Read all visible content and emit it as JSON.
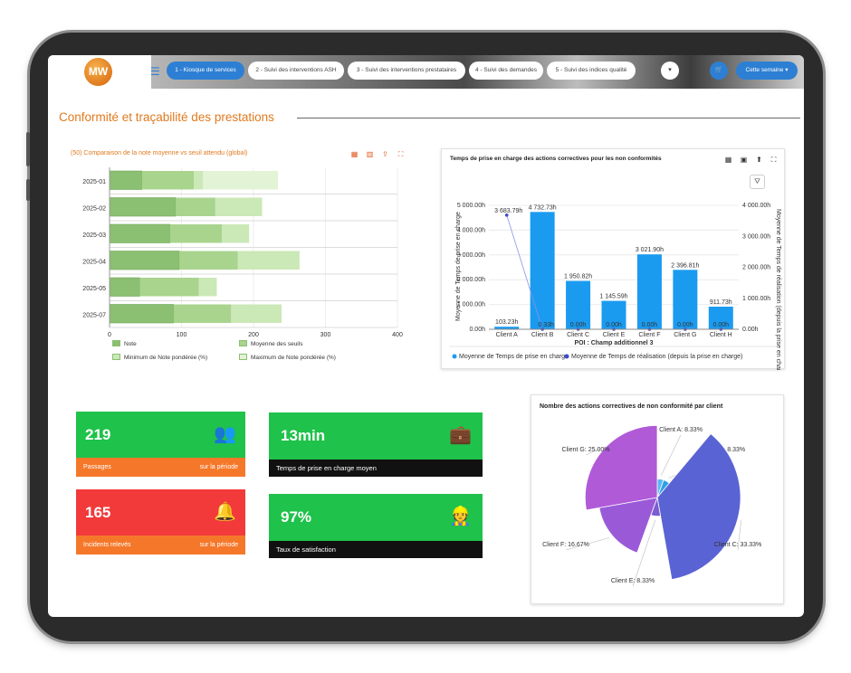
{
  "header": {
    "logo_text": "MW",
    "menu_icon": "hamburger-icon",
    "tabs": [
      {
        "label": "1 - Kiosque de services",
        "active": true
      },
      {
        "label": "2 - Suivi des interventions ASH",
        "active": false
      },
      {
        "label": "3 - Suivi des interventions prestataires",
        "active": false
      },
      {
        "label": "4 - Suivi des demandes",
        "active": false
      },
      {
        "label": "5 - Suivi des indices qualité",
        "active": false
      }
    ],
    "dropdown_icon": "chevron-down-icon",
    "cart_icon": "cart-icon",
    "period_button": "Cette semaine ▾",
    "accent_color": "#2d7fd3"
  },
  "page_title": "Conformité et traçabilité des prestations",
  "charts": {
    "note_chart": {
      "title": "(50) Comparaison de la note moyenne vs seuil attendu (global)",
      "tools": [
        "table-icon",
        "bar-chart-icon",
        "export-icon",
        "fullscreen-icon"
      ],
      "legend": [
        {
          "label": "Note",
          "color": "#8bbf72"
        },
        {
          "label": "Moyenne des seuils",
          "color": "#a8d48e"
        },
        {
          "label": "Minimum de Note pondérée (%)",
          "color": "#cbe8b7"
        },
        {
          "label": "Maximum de Note pondérée (%)",
          "color": "#e3f3d6"
        }
      ]
    },
    "response_chart": {
      "title": "Temps de prise en charge des actions correctives pour les non conformités",
      "tools": [
        "table-icon",
        "image-icon",
        "export-icon",
        "fullscreen-icon"
      ],
      "filter_icon": "filter-icon",
      "left_axis_label": "Moyenne de Temps de prise en charge",
      "right_axis_label": "Moyenne de Temps de réalisation (depuis la prise en charge)",
      "x_axis_label": "POI : Champ additionnel 3",
      "legend": [
        {
          "label": "Moyenne de Temps de prise en charge",
          "color": "#1b9bf0"
        },
        {
          "label": "Moyenne de Temps de réalisation (depuis la prise en charge)",
          "color": "#3f49c9"
        }
      ]
    },
    "pie_chart": {
      "title": "Nombre des actions correctives de non conformité par client"
    }
  },
  "kpis": [
    {
      "value": "219",
      "label": "Passages",
      "sub": "sur la période",
      "icon": "users-icon",
      "top_color": "#1fc24a",
      "bottom_color": "#f5782a"
    },
    {
      "value": "165",
      "label": "Incidents relevés",
      "sub": "sur la période",
      "icon": "bell-icon",
      "top_color": "#f23a3a",
      "bottom_color": "#f5782a"
    },
    {
      "value": "13min",
      "label": "Temps de prise en charge moyen",
      "icon": "briefcase-clock-icon"
    },
    {
      "value": "97%",
      "label": "Taux de satisfaction",
      "icon": "worker-icon"
    }
  ],
  "chart_data": [
    {
      "type": "bar",
      "orientation": "horizontal",
      "stacked": true,
      "categories": [
        "2025-01",
        "2025-02",
        "2025-03",
        "2025-04",
        "2025-05",
        "2025-07"
      ],
      "series": [
        {
          "name": "Note",
          "values": [
            45,
            92,
            84,
            97,
            42,
            89
          ]
        },
        {
          "name": "Moyenne des seuils",
          "values": [
            72,
            55,
            72,
            81,
            82,
            80
          ]
        },
        {
          "name": "Minimum de Note pondérée (%)",
          "values": [
            13,
            65,
            38,
            86,
            25,
            70
          ]
        },
        {
          "name": "Maximum de Note pondérée (%)",
          "values": [
            104,
            0,
            0,
            0,
            0,
            0
          ]
        }
      ],
      "xlim": [
        0,
        400
      ],
      "xticks": [
        0,
        100,
        200,
        300,
        400
      ]
    },
    {
      "type": "bar",
      "categories": [
        "Client A",
        "Client B",
        "Client C",
        "Client E",
        "Client F",
        "Client G",
        "Client H"
      ],
      "series": [
        {
          "name": "Moyenne de Temps de prise en charge",
          "values": [
            103.23,
            4732.73,
            1950.82,
            1145.59,
            3021.9,
            2396.81,
            911.73
          ],
          "labels": [
            "103.23h",
            "4 732.73h",
            "1 950.82h",
            "1 145.59h",
            "3 021.90h",
            "2 396.81h",
            "911.73h"
          ]
        },
        {
          "name": "Moyenne de Temps de réalisation (depuis la prise en charge)",
          "type": "line",
          "values": [
            3683.79,
            0.33,
            0,
            0,
            0,
            0,
            0
          ],
          "labels": [
            "3 683.79h",
            "0.33h",
            "0.00h",
            "0.00h",
            "0.00h",
            "0.00h",
            "0.00h"
          ]
        }
      ],
      "ylim": [
        0,
        5000
      ],
      "yticks": [
        "0.00h",
        "1 000.00h",
        "2 000.00h",
        "3 000.00h",
        "4 000.00h",
        "5 000.00h"
      ],
      "y2lim": [
        0,
        4000
      ],
      "y2ticks": [
        "0.00h",
        "1 000.00h",
        "2 000.00h",
        "3 000.00h",
        "4 000.00h"
      ]
    },
    {
      "type": "pie",
      "variant": "polar-area",
      "slices": [
        {
          "label": "Client A: 8.33%",
          "value": 8.33,
          "color": "#5bb8f5"
        },
        {
          "label": "Client B: 8.33%",
          "value": 8.33,
          "color": "#2fa0e8"
        },
        {
          "label": "Client C: 33.33%",
          "value": 33.33,
          "color": "#5a63d4"
        },
        {
          "label": "Client E: 8.33%",
          "value": 8.33,
          "color": "#7a5ed0"
        },
        {
          "label": "Client F: 16.67%",
          "value": 16.67,
          "color": "#9a5ad8"
        },
        {
          "label": "Client G: 25.00%",
          "value": 25,
          "color": "#b05ad8"
        }
      ]
    }
  ]
}
